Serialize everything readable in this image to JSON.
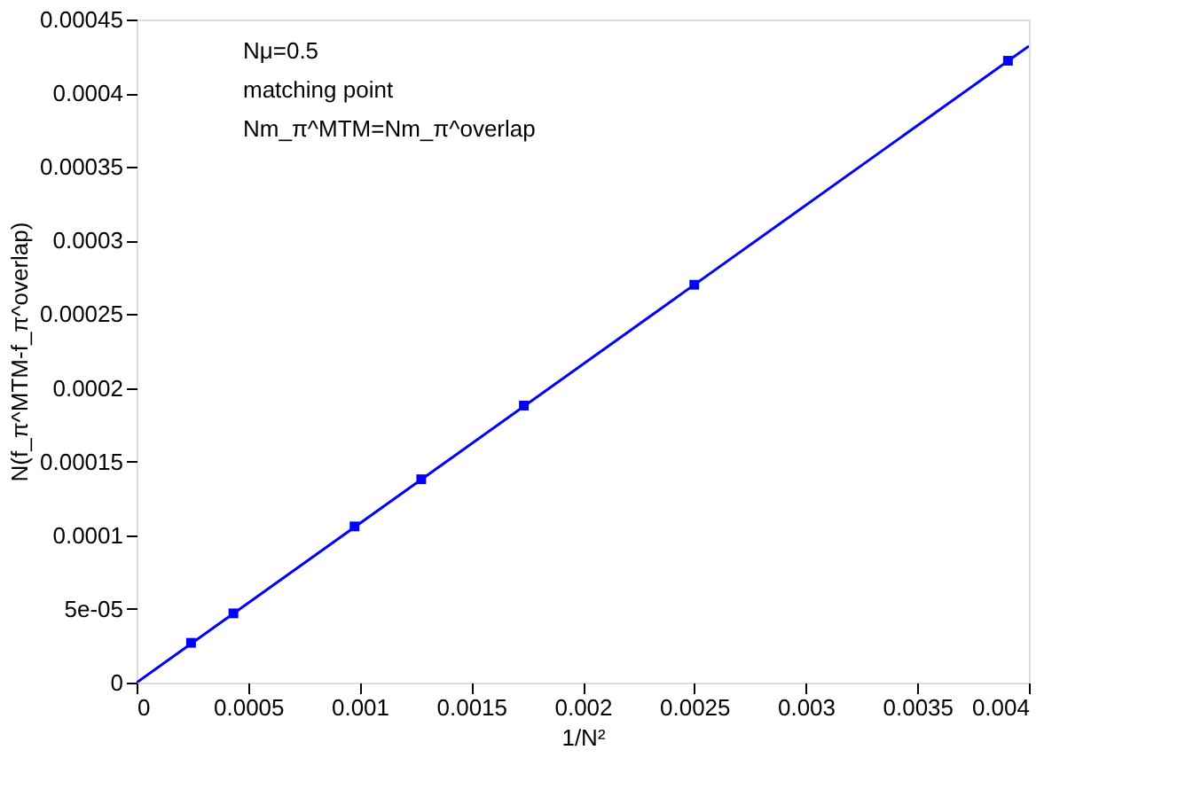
{
  "chart_data": {
    "type": "scatter",
    "xlabel": "1/N²",
    "ylabel": "N(f_π^MTM-f_π^overlap)",
    "annotations": [
      "Nμ=0.5",
      "matching point",
      "Nm_π^MTM=Nm_π^overlap"
    ],
    "series": [
      {
        "color": "#0000ff",
        "marker": "square",
        "x": [
          0.000244,
          0.000434,
          0.000977,
          0.001276,
          0.001736,
          0.0025,
          0.003906
        ],
        "values": [
          2.7e-05,
          4.7e-05,
          0.000106,
          0.000138,
          0.000188,
          0.00027,
          0.000422
        ]
      },
      {
        "type": "line",
        "color": "#0000ff",
        "line_style": "solid",
        "x": [
          0,
          0.004
        ],
        "values": [
          0,
          0.000432
        ]
      }
    ],
    "xlim": [
      0,
      0.004
    ],
    "ylim": [
      0,
      0.00045
    ],
    "xticks": [
      0,
      0.0005,
      0.001,
      0.0015,
      0.002,
      0.0025,
      0.003,
      0.0035,
      0.004
    ],
    "yticks": [
      0,
      {
        "value": 5e-05,
        "label": "5e-05"
      },
      0.0001,
      0.00015,
      0.0002,
      0.00025,
      0.0003,
      0.00035,
      0.0004,
      0.00045
    ],
    "grid": false
  }
}
